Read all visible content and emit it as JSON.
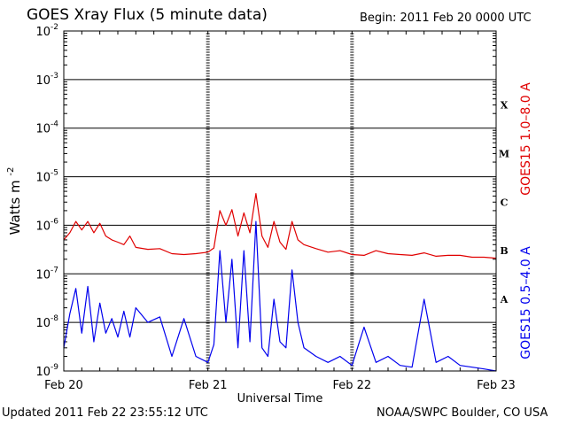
{
  "header": {
    "title": "GOES Xray Flux (5 minute data)",
    "begin": "Begin:  2011 Feb 20 0000 UTC"
  },
  "footer": {
    "updated": "Updated 2011 Feb 22 23:55:12 UTC",
    "credit": "NOAA/SWPC Boulder, CO USA"
  },
  "colors": {
    "long": "#e00000",
    "short": "#0000ee",
    "axis": "#000000"
  },
  "chart_data": {
    "type": "line",
    "title": "GOES Xray Flux (5 minute data)",
    "xlabel": "Universal Time",
    "ylabel": "Watts m",
    "ylabel_exp": "-2",
    "yscale": "log",
    "ylim": [
      1e-09,
      0.01
    ],
    "xlim": [
      "2011-02-20 00:00",
      "2011-02-23 00:00"
    ],
    "grid": true,
    "x_ticks": [
      "Feb 20",
      "Feb 21",
      "Feb 22",
      "Feb 23"
    ],
    "y_ticks": [
      {
        "base": "10",
        "exp": "-2",
        "value": 0.01
      },
      {
        "base": "10",
        "exp": "-3",
        "value": 0.001
      },
      {
        "base": "10",
        "exp": "-4",
        "value": 0.0001
      },
      {
        "base": "10",
        "exp": "-5",
        "value": 1e-05
      },
      {
        "base": "10",
        "exp": "-6",
        "value": 1e-06
      },
      {
        "base": "10",
        "exp": "-7",
        "value": 1e-07
      },
      {
        "base": "10",
        "exp": "-8",
        "value": 1e-08
      },
      {
        "base": "10",
        "exp": "-9",
        "value": 1e-09
      }
    ],
    "flare_classes": [
      {
        "label": "X",
        "value": 0.0003
      },
      {
        "label": "M",
        "value": 3e-05
      },
      {
        "label": "C",
        "value": 3e-06
      },
      {
        "label": "B",
        "value": 3e-07
      },
      {
        "label": "A",
        "value": 3e-08
      }
    ],
    "series": [
      {
        "name": "GOES15 1.0–8.0 A",
        "color": "#e00000",
        "x_hours": [
          0,
          1,
          2,
          3,
          4,
          5,
          6,
          7,
          8,
          9,
          10,
          11,
          12,
          14,
          16,
          18,
          20,
          22,
          24,
          25,
          26,
          27,
          28,
          29,
          30,
          31,
          32,
          33,
          34,
          35,
          36,
          37,
          38,
          39,
          40,
          42,
          44,
          46,
          48,
          50,
          52,
          54,
          56,
          58,
          60,
          62,
          64,
          66,
          68,
          70,
          72
        ],
        "values": [
          5e-07,
          7e-07,
          1.2e-06,
          8e-07,
          1.2e-06,
          7e-07,
          1.1e-06,
          6e-07,
          5e-07,
          4.5e-07,
          4e-07,
          6e-07,
          3.5e-07,
          3.2e-07,
          3.3e-07,
          2.6e-07,
          2.5e-07,
          2.6e-07,
          2.8e-07,
          3.4e-07,
          2e-06,
          1e-06,
          2.1e-06,
          6e-07,
          1.8e-06,
          7e-07,
          4.5e-06,
          6e-07,
          3.5e-07,
          1.2e-06,
          4.5e-07,
          3.2e-07,
          1.2e-06,
          5e-07,
          4e-07,
          3.3e-07,
          2.8e-07,
          3e-07,
          2.5e-07,
          2.4e-07,
          3e-07,
          2.6e-07,
          2.5e-07,
          2.4e-07,
          2.7e-07,
          2.3e-07,
          2.4e-07,
          2.4e-07,
          2.2e-07,
          2.2e-07,
          2.1e-07
        ]
      },
      {
        "name": "GOES15 0.5–4.0 A",
        "color": "#0000ee",
        "x_hours": [
          0,
          1,
          2,
          3,
          4,
          5,
          6,
          7,
          8,
          9,
          10,
          11,
          12,
          14,
          16,
          18,
          20,
          22,
          24,
          25,
          26,
          27,
          28,
          29,
          30,
          31,
          32,
          33,
          34,
          35,
          36,
          37,
          38,
          39,
          40,
          42,
          44,
          46,
          48,
          50,
          52,
          54,
          56,
          58,
          60,
          62,
          64,
          66,
          68,
          70,
          72
        ],
        "values": [
          3e-09,
          1.5e-08,
          5e-08,
          6e-09,
          5.5e-08,
          4e-09,
          2.5e-08,
          6e-09,
          1.2e-08,
          5e-09,
          1.7e-08,
          5e-09,
          2e-08,
          1e-08,
          1.3e-08,
          2e-09,
          1.2e-08,
          2e-09,
          1.5e-09,
          3.5e-09,
          3e-07,
          1e-08,
          2e-07,
          3e-09,
          3e-07,
          4e-09,
          1.2e-06,
          3e-09,
          2e-09,
          3e-08,
          4e-09,
          3e-09,
          1.2e-07,
          1e-08,
          3e-09,
          2e-09,
          1.5e-09,
          2e-09,
          1.3e-09,
          8e-09,
          1.5e-09,
          2e-09,
          1.3e-09,
          1.2e-09,
          3e-08,
          1.5e-09,
          2e-09,
          1.3e-09,
          1.2e-09,
          1.1e-09,
          1e-09
        ]
      }
    ]
  }
}
